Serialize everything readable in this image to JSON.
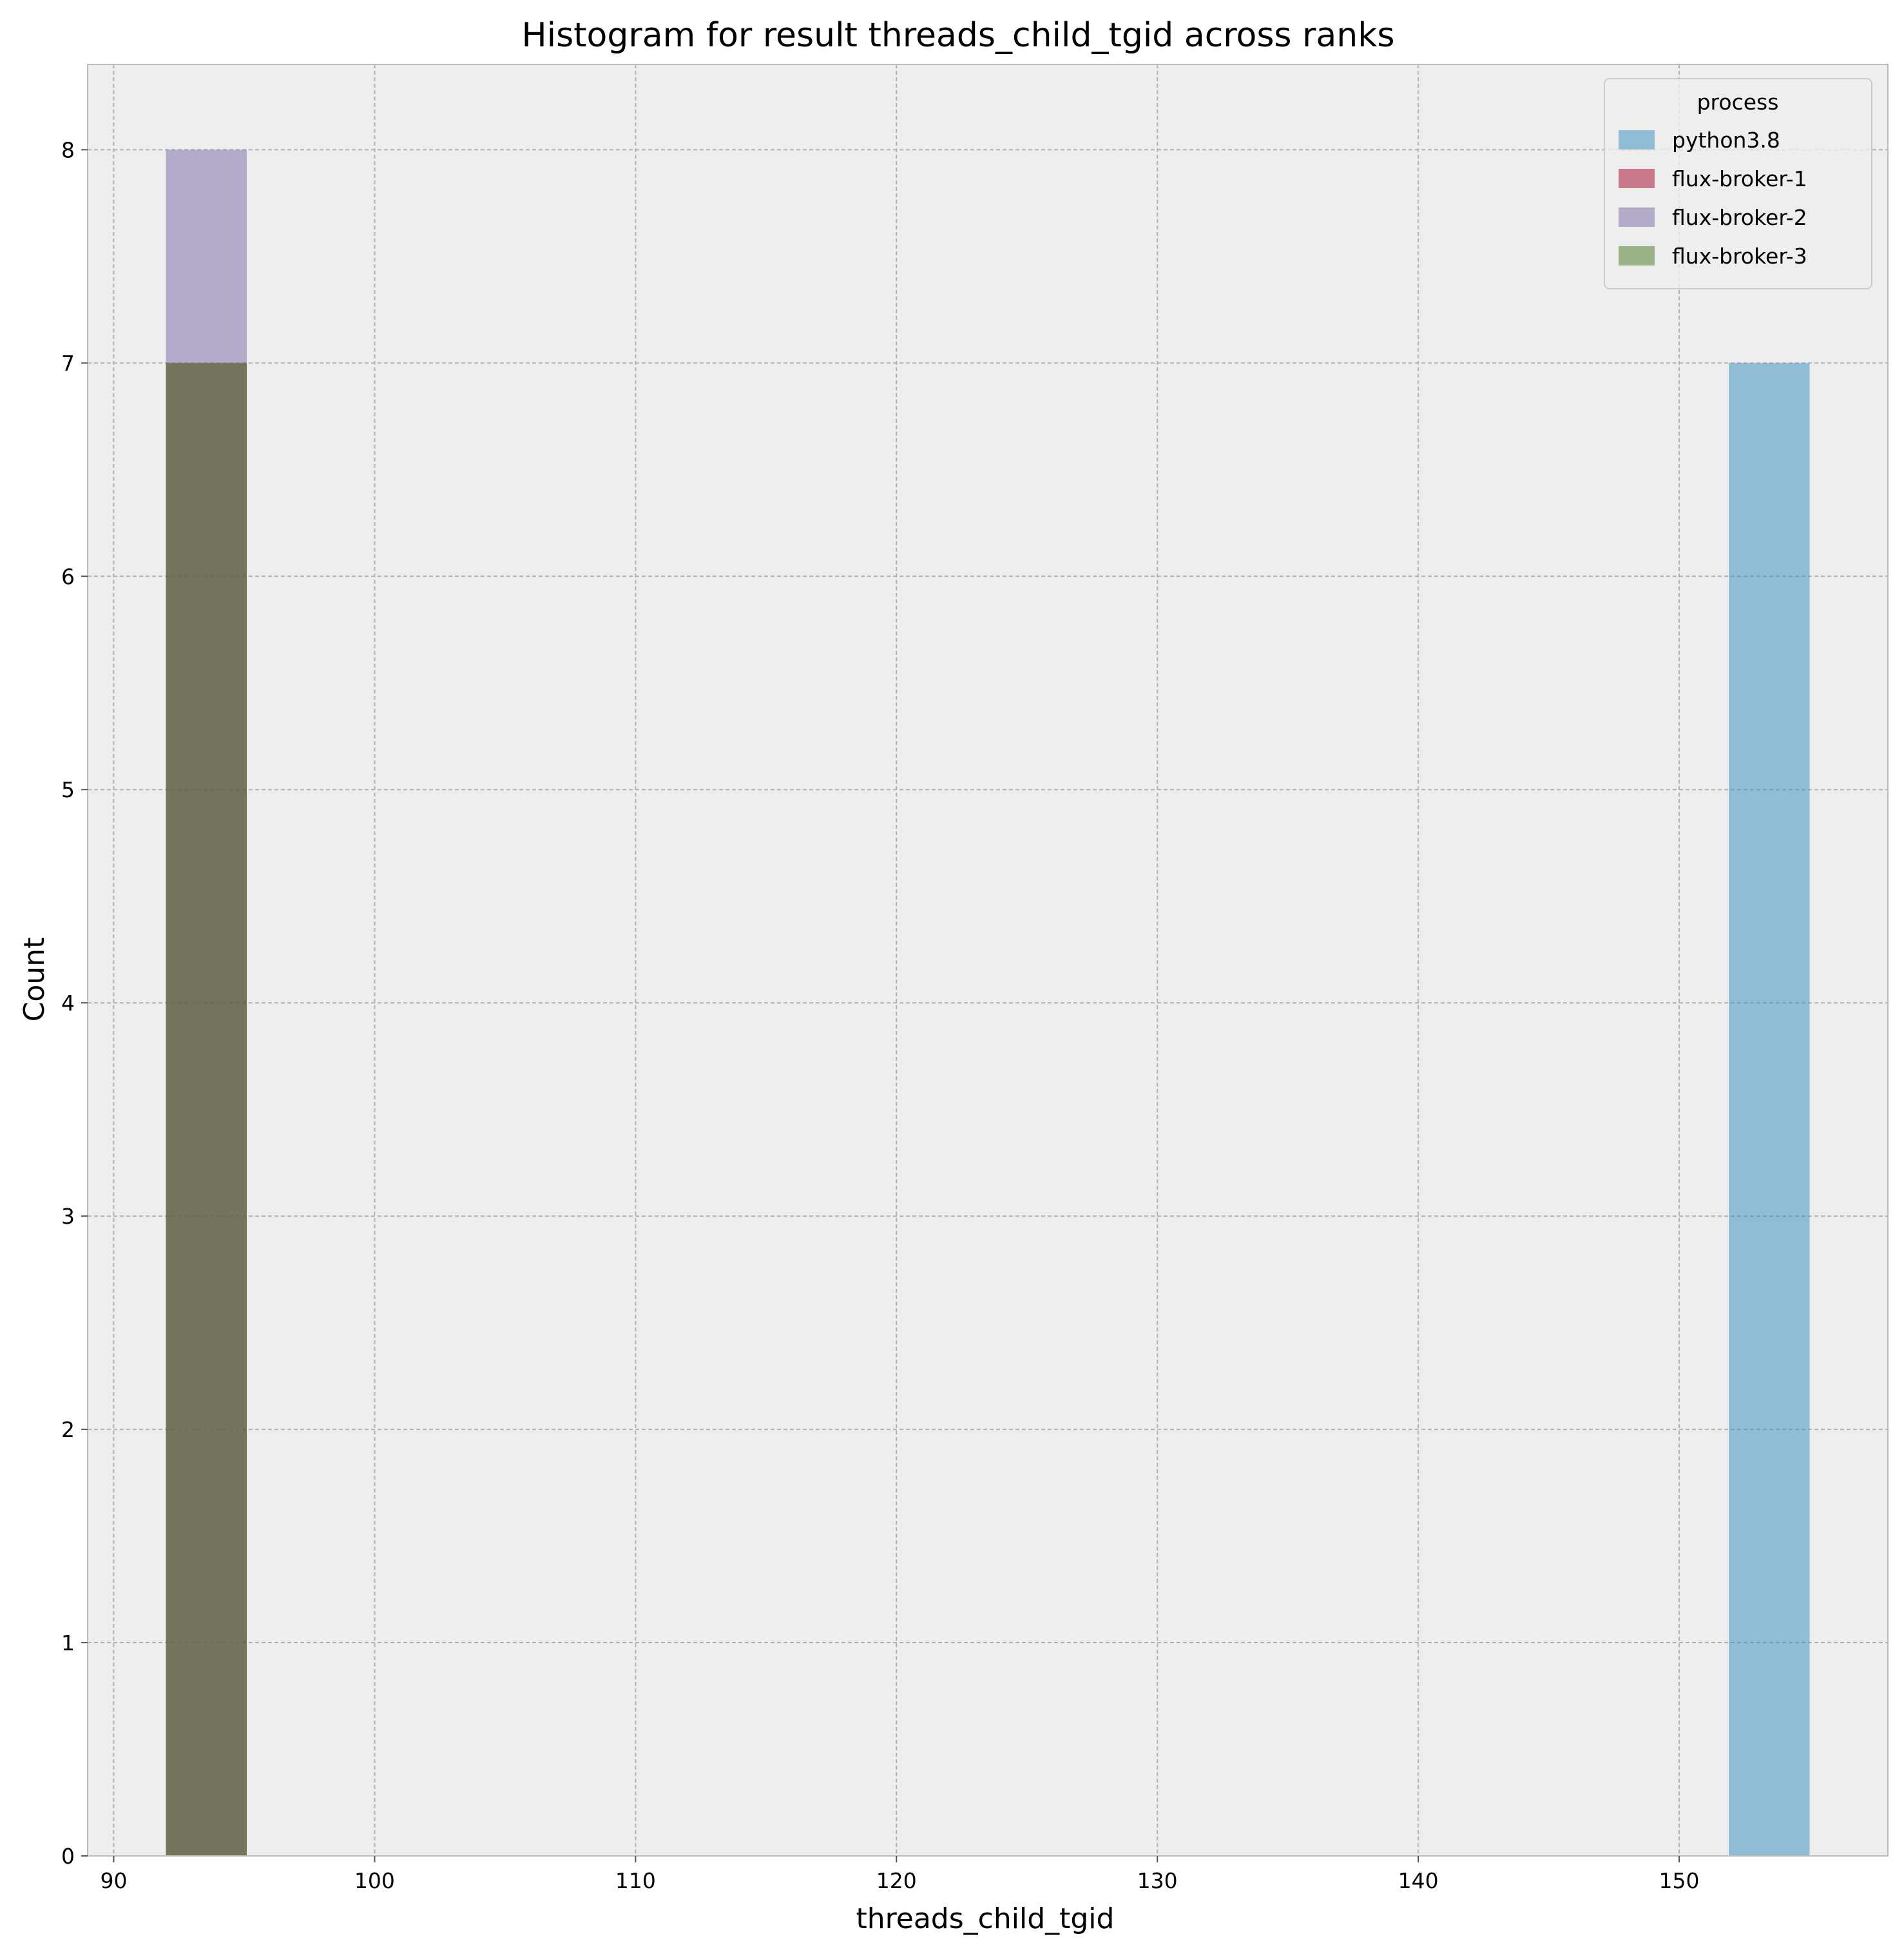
{
  "chart_data": {
    "type": "bar",
    "title": "Histogram for result threads_child_tgid across ranks",
    "xlabel": "threads_child_tgid",
    "ylabel": "Count",
    "xlim": [
      89,
      158
    ],
    "ylim": [
      0,
      8.4
    ],
    "x_ticks": [
      90,
      100,
      110,
      120,
      130,
      140,
      150
    ],
    "y_ticks": [
      0,
      1,
      2,
      3,
      4,
      5,
      6,
      7,
      8
    ],
    "grid": true,
    "legend": {
      "title": "process",
      "placement": "top-right"
    },
    "bin_width": 3.1,
    "series": [
      {
        "name": "python3.8",
        "color": "#348abd",
        "opacity": 0.5,
        "bins": [
          {
            "x_start": 151.9,
            "x_end": 155.0,
            "count": 7
          }
        ]
      },
      {
        "name": "flux-broker-1",
        "color": "#a60628",
        "opacity": 0.5,
        "bins": [
          {
            "x_start": 92.0,
            "x_end": 95.1,
            "count": 7
          }
        ]
      },
      {
        "name": "flux-broker-2",
        "color": "#7a68a6",
        "opacity": 0.5,
        "bins": [
          {
            "x_start": 92.0,
            "x_end": 95.1,
            "count": 8
          }
        ]
      },
      {
        "name": "flux-broker-3",
        "color": "#467821",
        "opacity": 0.5,
        "bins": [
          {
            "x_start": 92.0,
            "x_end": 95.1,
            "count": 7
          }
        ]
      }
    ]
  }
}
